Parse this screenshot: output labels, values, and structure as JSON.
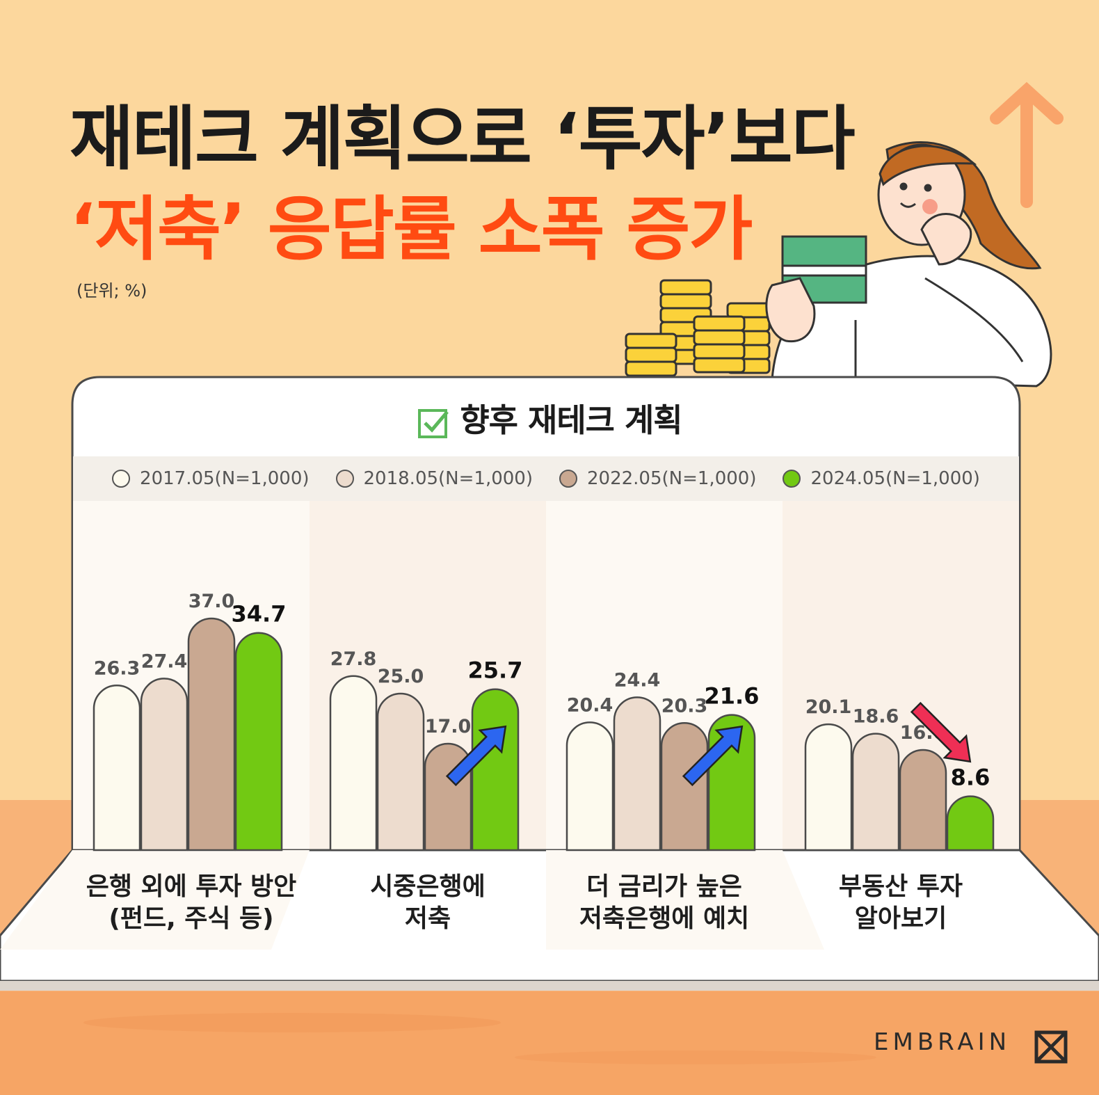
{
  "title": {
    "line1": "재테크 계획으로 ‘투자’보다",
    "line2": "‘저축’ 응답률 소폭 증가"
  },
  "unit": "(단위; %)",
  "card_title": "향후 재테크 계획",
  "logo": "EMBRAIN",
  "colors": {
    "s2017": "#fdfaee",
    "s2018": "#eddcce",
    "s2022": "#c9a891",
    "s2024": "#72c913",
    "up_arrow": "#2c66f0",
    "down_arrow": "#ef2f55",
    "title_accent": "#ff4b12"
  },
  "chart_data": {
    "type": "bar",
    "title": "향후 재테크 계획",
    "ylabel": "(단위; %)",
    "categories": [
      "은행 외에 투자 방안\n(펀드, 주식 등)",
      "시중은행에\n저축",
      "더 금리가 높은\n저축은행에 예치",
      "부동산 투자\n알아보기"
    ],
    "series": [
      {
        "name": "2017.05(N=1,000)",
        "values": [
          26.3,
          27.8,
          20.4,
          20.1
        ]
      },
      {
        "name": "2018.05(N=1,000)",
        "values": [
          27.4,
          25.0,
          24.4,
          18.6
        ]
      },
      {
        "name": "2022.05(N=1,000)",
        "values": [
          37.0,
          17.0,
          20.3,
          16.0
        ]
      },
      {
        "name": "2024.05(N=1,000)",
        "values": [
          34.7,
          25.7,
          21.6,
          8.6
        ]
      }
    ],
    "trend_arrows": [
      "none",
      "up",
      "up",
      "down"
    ],
    "legend_position": "top",
    "grid": false
  }
}
